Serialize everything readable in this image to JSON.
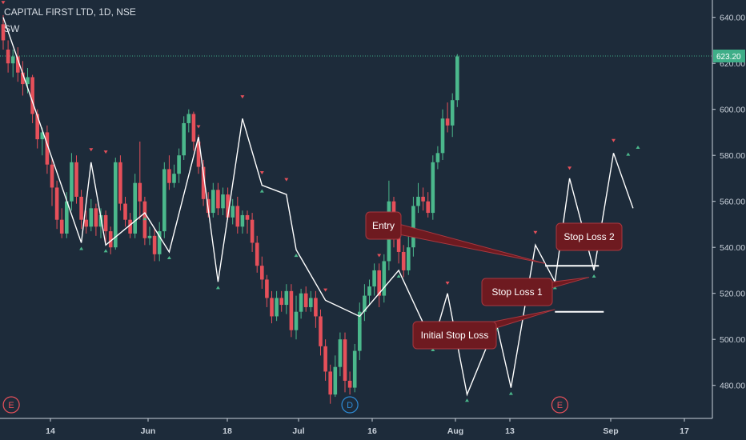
{
  "header": {
    "title": "CAPITAL FIRST LTD, 1D, NSE",
    "indicator": "SW"
  },
  "colors": {
    "background": "#1d2b3a",
    "up": "#4bb88c",
    "down": "#e6505a",
    "zigzag": "#ffffff",
    "marker_up": "#4bb88c",
    "marker_down": "#e6505a",
    "annotation_bg": "#6e1a20",
    "annotation_border": "#a83840",
    "last_price": "#3fae88"
  },
  "chart_data": {
    "type": "candlestick",
    "title": "CAPITAL FIRST LTD, 1D, NSE",
    "ylim": [
      466,
      645
    ],
    "y_ticks": [
      "480.00",
      "500.00",
      "520.00",
      "540.00",
      "560.00",
      "580.00",
      "600.00",
      "620.00",
      "640.00"
    ],
    "x_ticks": [
      "14",
      "Jun",
      "18",
      "Jul",
      "16",
      "Aug",
      "13",
      "Sep",
      "17"
    ],
    "last_price": "623.20",
    "grid": false,
    "candles": [
      [
        637,
        630,
        641,
        626
      ],
      [
        626,
        620,
        630,
        616
      ],
      [
        620,
        623,
        626,
        614
      ],
      [
        623,
        616,
        627,
        612
      ],
      [
        616,
        611,
        621,
        606
      ],
      [
        611,
        614,
        618,
        607
      ],
      [
        614,
        598,
        615,
        594
      ],
      [
        598,
        587,
        600,
        583
      ],
      [
        587,
        590,
        592,
        580
      ],
      [
        590,
        576,
        593,
        572
      ],
      [
        576,
        566,
        579,
        558
      ],
      [
        566,
        552,
        569,
        548
      ],
      [
        552,
        546,
        557,
        544
      ],
      [
        546,
        560,
        564,
        544
      ],
      [
        560,
        577,
        581,
        556
      ],
      [
        577,
        562,
        580,
        559
      ],
      [
        562,
        552,
        565,
        548
      ],
      [
        552,
        549,
        556,
        546
      ],
      [
        549,
        557,
        561,
        547
      ],
      [
        557,
        549,
        559,
        545
      ],
      [
        549,
        554,
        557,
        544
      ],
      [
        554,
        547,
        556,
        542
      ],
      [
        547,
        540,
        549,
        537
      ],
      [
        540,
        577,
        579,
        539
      ],
      [
        577,
        559,
        580,
        556
      ],
      [
        559,
        552,
        562,
        549
      ],
      [
        552,
        546,
        555,
        544
      ],
      [
        546,
        568,
        572,
        544
      ],
      [
        568,
        560,
        586,
        552
      ],
      [
        560,
        544,
        562,
        541
      ],
      [
        544,
        545,
        549,
        541
      ],
      [
        545,
        537,
        548,
        534
      ],
      [
        537,
        547,
        551,
        534
      ],
      [
        547,
        574,
        577,
        544
      ],
      [
        574,
        568,
        580,
        565
      ],
      [
        568,
        572,
        576,
        566
      ],
      [
        572,
        580,
        583,
        568
      ],
      [
        580,
        594,
        597,
        578
      ],
      [
        594,
        598,
        600,
        590
      ],
      [
        598,
        586,
        599,
        582
      ],
      [
        586,
        575,
        589,
        572
      ],
      [
        575,
        561,
        578,
        558
      ],
      [
        561,
        555,
        564,
        553
      ],
      [
        555,
        565,
        568,
        553
      ],
      [
        565,
        557,
        568,
        554
      ],
      [
        557,
        563,
        566,
        554
      ],
      [
        563,
        553,
        566,
        552
      ],
      [
        553,
        558,
        561,
        550
      ],
      [
        558,
        549,
        562,
        546
      ],
      [
        549,
        554,
        556,
        546
      ],
      [
        554,
        552,
        556,
        546
      ],
      [
        552,
        542,
        555,
        538
      ],
      [
        542,
        532,
        545,
        529
      ],
      [
        532,
        526,
        536,
        522
      ],
      [
        526,
        518,
        528,
        514
      ],
      [
        518,
        510,
        521,
        507
      ],
      [
        510,
        518,
        521,
        508
      ],
      [
        518,
        515,
        521,
        512
      ],
      [
        515,
        521,
        524,
        511
      ],
      [
        521,
        504,
        524,
        501
      ],
      [
        504,
        512,
        519,
        500
      ],
      [
        512,
        520,
        522,
        509
      ],
      [
        520,
        514,
        523,
        512
      ],
      [
        514,
        518,
        521,
        512
      ],
      [
        518,
        510,
        521,
        505
      ],
      [
        510,
        497,
        513,
        493
      ],
      [
        497,
        486,
        500,
        482
      ],
      [
        486,
        476,
        489,
        472
      ],
      [
        476,
        488,
        493,
        475
      ],
      [
        488,
        500,
        503,
        484
      ],
      [
        500,
        482,
        503,
        477
      ],
      [
        482,
        479,
        486,
        476
      ],
      [
        479,
        495,
        498,
        477
      ],
      [
        495,
        512,
        516,
        491
      ],
      [
        512,
        519,
        524,
        508
      ],
      [
        519,
        523,
        526,
        515
      ],
      [
        523,
        530,
        533,
        519
      ],
      [
        530,
        519,
        533,
        514
      ],
      [
        519,
        534,
        537,
        516
      ],
      [
        534,
        560,
        569,
        530
      ],
      [
        560,
        545,
        562,
        540
      ],
      [
        545,
        538,
        549,
        533
      ],
      [
        538,
        530,
        541,
        527
      ],
      [
        530,
        540,
        545,
        528
      ],
      [
        540,
        558,
        562,
        536
      ],
      [
        558,
        562,
        568,
        555
      ],
      [
        562,
        560,
        566,
        556
      ],
      [
        560,
        555,
        564,
        553
      ],
      [
        555,
        577,
        580,
        552
      ],
      [
        577,
        581,
        584,
        574
      ],
      [
        581,
        596,
        600,
        578
      ],
      [
        596,
        593,
        603,
        590
      ],
      [
        593,
        604,
        607,
        588
      ],
      [
        604,
        623,
        624,
        601
      ]
    ],
    "zigzag": [
      [
        0,
        640
      ],
      [
        16,
        542
      ],
      [
        18,
        577
      ],
      [
        21,
        541
      ],
      [
        29,
        555
      ],
      [
        34,
        538
      ],
      [
        40,
        588
      ],
      [
        44,
        525
      ],
      [
        49,
        596
      ],
      [
        53,
        567
      ],
      [
        58,
        563
      ],
      [
        60,
        539
      ],
      [
        66,
        517
      ],
      [
        73,
        510
      ],
      [
        81,
        530
      ],
      [
        88,
        498
      ],
      [
        91,
        520
      ],
      [
        95,
        476
      ],
      [
        101,
        507
      ],
      [
        104,
        479
      ],
      [
        109,
        541
      ],
      [
        113,
        525
      ],
      [
        116,
        570
      ],
      [
        121,
        530
      ],
      [
        125,
        581
      ],
      [
        129,
        557
      ]
    ],
    "markers_up": [
      [
        16,
        542
      ],
      [
        21,
        541
      ],
      [
        29,
        555
      ],
      [
        34,
        538
      ],
      [
        44,
        525
      ],
      [
        53,
        567
      ],
      [
        60,
        539
      ],
      [
        73,
        510
      ],
      [
        81,
        530
      ],
      [
        88,
        498
      ],
      [
        95,
        476
      ],
      [
        101,
        507
      ],
      [
        104,
        479
      ],
      [
        113,
        525
      ],
      [
        121,
        530
      ],
      [
        125,
        548
      ],
      [
        128,
        583
      ],
      [
        130,
        586
      ]
    ],
    "markers_down": [
      [
        0,
        644
      ],
      [
        18,
        580
      ],
      [
        21,
        579
      ],
      [
        40,
        590
      ],
      [
        49,
        603
      ],
      [
        53,
        570
      ],
      [
        58,
        567
      ],
      [
        66,
        519
      ],
      [
        77,
        534
      ],
      [
        91,
        522
      ],
      [
        109,
        544
      ],
      [
        116,
        572
      ],
      [
        125,
        584
      ]
    ],
    "lines": [
      {
        "x0": 111,
        "x1": 122,
        "y": 532
      },
      {
        "x0": 113,
        "x1": 123,
        "y": 512
      }
    ],
    "annotations": [
      {
        "text": "Entry",
        "target": [
          111,
          533
        ]
      },
      {
        "text": "Stop Loss 1",
        "target": [
          120,
          527
        ]
      },
      {
        "text": "Initial Stop Loss",
        "target": [
          113,
          513
        ]
      },
      {
        "text": "Stop Loss 2",
        "target": [
          126,
          546
        ]
      }
    ],
    "events": [
      {
        "label": "E",
        "x": 1,
        "color": "#e6505a"
      },
      {
        "label": "D",
        "x": 71,
        "color": "#2e8bd6"
      },
      {
        "label": "E",
        "x": 114,
        "color": "#e6505a"
      }
    ]
  }
}
